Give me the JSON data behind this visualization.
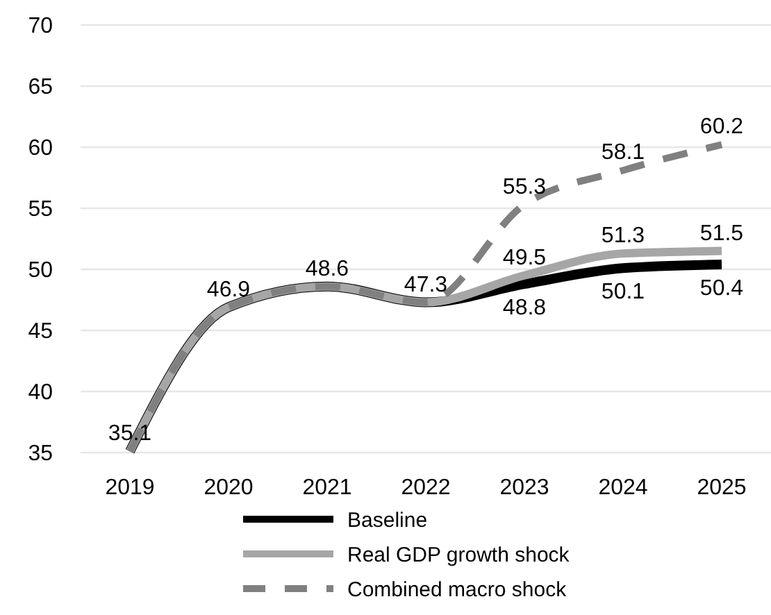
{
  "chart_data": {
    "type": "line",
    "categories": [
      "2019",
      "2020",
      "2021",
      "2022",
      "2023",
      "2024",
      "2025"
    ],
    "ylim": [
      35,
      70
    ],
    "yticks": [
      35,
      40,
      45,
      50,
      55,
      60,
      65,
      70
    ],
    "grid": "y",
    "legend": "bottom",
    "series": [
      {
        "name": "Baseline",
        "color": "#000000",
        "line_style": "solid",
        "values": [
          35.1,
          46.9,
          48.6,
          47.3,
          48.8,
          50.1,
          50.4
        ],
        "value_labels": [
          "35.1",
          "46.9",
          "48.6",
          "47.3",
          "48.8",
          "50.1",
          "50.4"
        ]
      },
      {
        "name": "Real GDP growth shock",
        "color": "#a6a6a6",
        "line_style": "solid",
        "values": [
          35.1,
          46.9,
          48.6,
          47.3,
          49.5,
          51.3,
          51.5
        ],
        "value_labels": [
          null,
          null,
          null,
          null,
          "49.5",
          "51.3",
          "51.5"
        ]
      },
      {
        "name": "Combined macro shock",
        "color": "#808080",
        "line_style": "dashed",
        "values": [
          35.1,
          46.9,
          48.6,
          47.3,
          55.3,
          58.1,
          60.2
        ],
        "value_labels": [
          null,
          null,
          null,
          null,
          "55.3",
          "58.1",
          "60.2"
        ]
      }
    ]
  }
}
